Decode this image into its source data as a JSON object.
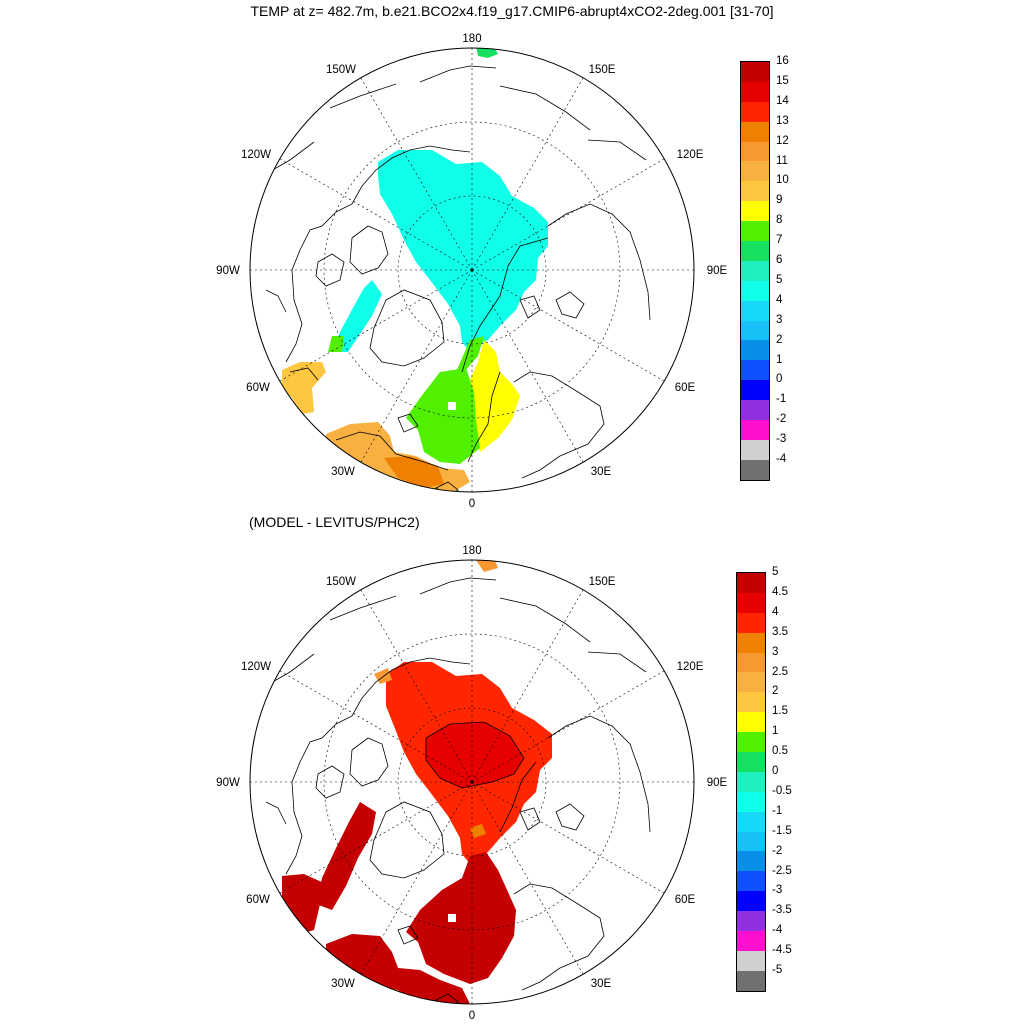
{
  "title": "TEMP at z= 482.7m, b.e21.BCO2x4.f19_g17.CMIP6-abrupt4xCO2-2deg.001 [31-70]",
  "panels": [
    {
      "id": "top",
      "subtitle": "",
      "longitude_labels": [
        "180",
        "150E",
        "120E",
        "90E",
        "60E",
        "30E",
        "0",
        "30W",
        "60W",
        "90W",
        "120W",
        "150W"
      ],
      "colorbar": {
        "labels": [
          "16",
          "15",
          "14",
          "13",
          "12",
          "11",
          "10",
          "9",
          "8",
          "7",
          "6",
          "5",
          "4",
          "3",
          "2",
          "1",
          "0",
          "-1",
          "-2",
          "-3",
          "-4"
        ],
        "colors": [
          "#c40000",
          "#e60000",
          "#ff2600",
          "#f08000",
          "#f79930",
          "#f8b040",
          "#ffc640",
          "#ffff00",
          "#50f000",
          "#16e060",
          "#20f0c0",
          "#10ffe8",
          "#18d8f8",
          "#18c0f8",
          "#0890e8",
          "#1050ff",
          "#0000ff",
          "#9030e0",
          "#ff10d0",
          "#d0d0d0",
          "#707070"
        ]
      }
    },
    {
      "id": "bottom",
      "subtitle": "(MODEL - LEVITUS/PHC2)",
      "longitude_labels": [
        "180",
        "150E",
        "120E",
        "90E",
        "60E",
        "30E",
        "0",
        "30W",
        "60W",
        "90W",
        "120W",
        "150W"
      ],
      "colorbar": {
        "labels": [
          "5",
          "4.5",
          "4",
          "3.5",
          "3",
          "2.5",
          "2",
          "1.5",
          "1",
          "0.5",
          "0",
          "-0.5",
          "-1",
          "-1.5",
          "-2",
          "-2.5",
          "-3",
          "-3.5",
          "-4",
          "-4.5",
          "-5"
        ],
        "colors": [
          "#c40000",
          "#e60000",
          "#ff2600",
          "#f08000",
          "#f79930",
          "#f8b040",
          "#ffc640",
          "#ffff00",
          "#50f000",
          "#16e060",
          "#20f0c0",
          "#10ffe8",
          "#18d8f8",
          "#18c0f8",
          "#0890e8",
          "#1050ff",
          "#0000ff",
          "#9030e0",
          "#ff10d0",
          "#d0d0d0",
          "#707070"
        ]
      }
    }
  ]
}
